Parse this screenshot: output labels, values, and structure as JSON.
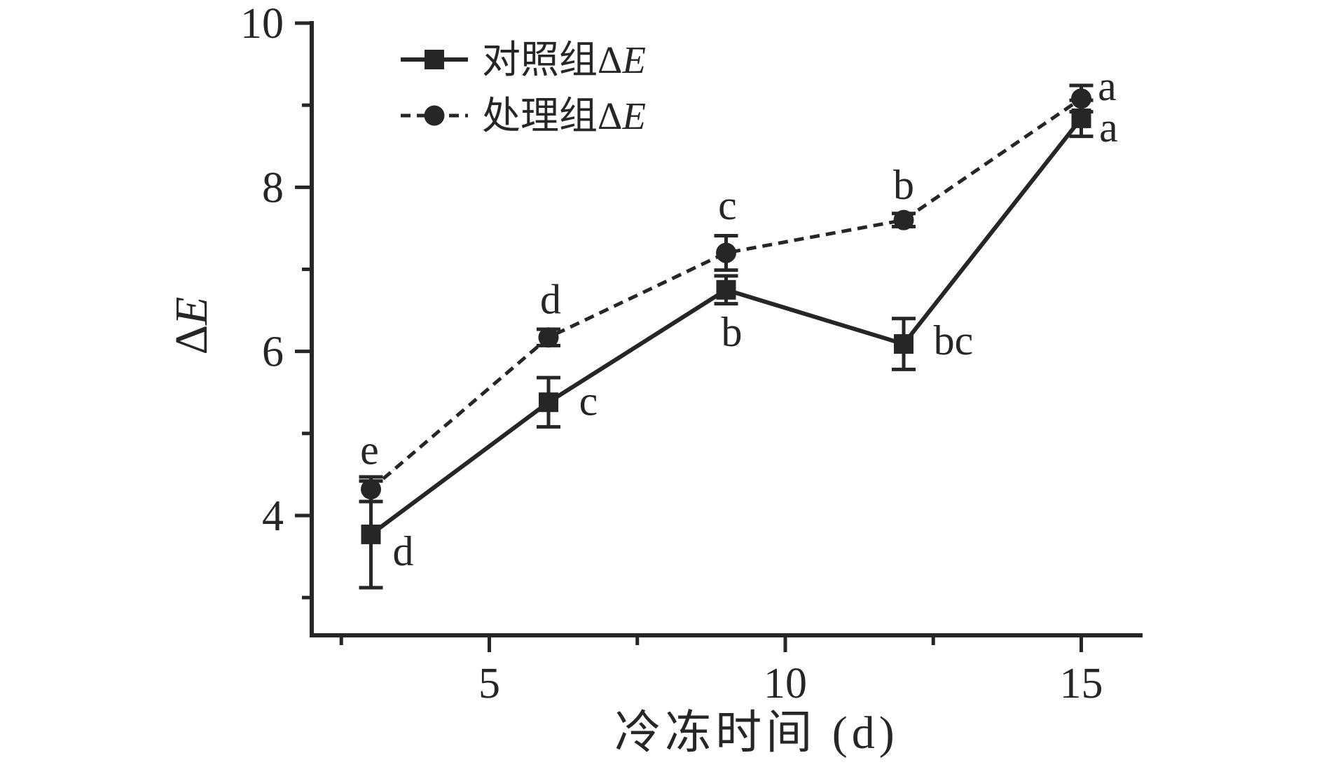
{
  "figure": {
    "background": "#ffffff",
    "ink_color": "#262626"
  },
  "chart_data": {
    "type": "line",
    "title": "",
    "xlabel": "冷冻时间 (d)",
    "ylabel": "ΔE",
    "xlim": [
      2,
      16
    ],
    "ylim": [
      2.54,
      10
    ],
    "x_major_ticks": [
      5,
      10,
      15
    ],
    "x_minor_ticks": [
      2.5,
      7.5,
      12.5
    ],
    "y_major_ticks": [
      4,
      6,
      8,
      10
    ],
    "y_minor_ticks": [
      3,
      5,
      7,
      9
    ],
    "grid": false,
    "legend_position": "top-center-inside",
    "x": [
      3,
      6,
      9,
      12,
      15
    ],
    "series": [
      {
        "name": "对照组ΔE",
        "marker": "square",
        "line_style": "solid",
        "values": [
          3.77,
          5.38,
          6.75,
          6.09,
          8.84
        ],
        "errors": [
          0.65,
          0.3,
          0.17,
          0.31,
          0.22
        ],
        "point_labels": [
          "d",
          "c",
          "b",
          "bc",
          "a"
        ]
      },
      {
        "name": "处理组ΔE",
        "marker": "circle",
        "line_style": "dashed",
        "values": [
          4.32,
          6.17,
          7.2,
          7.6,
          9.08
        ],
        "errors": [
          0.15,
          0.1,
          0.21,
          0.08,
          0.16
        ],
        "point_labels": [
          "e",
          "d",
          "c",
          "b",
          "a"
        ]
      }
    ]
  },
  "legend": {
    "items": [
      {
        "label": "对照组ΔE",
        "marker": "square",
        "line_style": "solid"
      },
      {
        "label": "处理组ΔE",
        "marker": "circle",
        "line_style": "dashed"
      }
    ]
  }
}
